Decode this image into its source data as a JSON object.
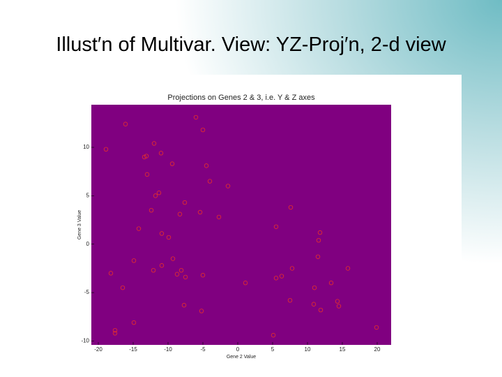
{
  "slide": {
    "title": "Illust′n of Multivar. View: YZ-Proj′n, 2-d view"
  },
  "chart_data": {
    "type": "scatter",
    "title": "Projections on Genes 2 & 3, i.e. Y & Z axes",
    "x_label": "Gene 2 Value",
    "y_label": "Gene 3 Value",
    "x": [
      -16.1,
      -6.0,
      -5.0,
      -18.9,
      -12.0,
      -13.1,
      -13.4,
      -11.0,
      -9.4,
      -4.5,
      -13.0,
      -4.0,
      -1.4,
      -11.3,
      -11.8,
      -7.6,
      -12.4,
      -8.3,
      -5.4,
      -2.7,
      7.6,
      -14.2,
      -10.9,
      -9.9,
      5.5,
      11.8,
      11.6,
      -14.9,
      -9.3,
      -10.9,
      -12.1,
      -8.1,
      -18.2,
      -8.7,
      -7.5,
      -5.0,
      7.8,
      11.5,
      15.8,
      -16.5,
      1.1,
      5.5,
      6.3,
      11.0,
      13.4,
      7.5,
      -7.7,
      -5.2,
      10.9,
      11.9,
      14.3,
      14.5,
      -14.9,
      -17.6,
      -17.6,
      5.1,
      19.9
    ],
    "values": [
      12.4,
      13.1,
      11.8,
      9.8,
      10.4,
      9.1,
      9.0,
      9.4,
      8.3,
      8.1,
      7.2,
      6.5,
      6.0,
      5.3,
      5.0,
      4.3,
      3.5,
      3.1,
      3.3,
      2.8,
      3.8,
      1.6,
      1.1,
      0.7,
      1.8,
      1.2,
      0.4,
      -1.7,
      -1.5,
      -2.2,
      -2.7,
      -2.7,
      -3.0,
      -3.1,
      -3.4,
      -3.2,
      -2.5,
      -1.3,
      -2.5,
      -4.5,
      -4.0,
      -3.5,
      -3.3,
      -4.5,
      -4.0,
      -5.8,
      -6.3,
      -6.9,
      -6.2,
      -6.8,
      -5.9,
      -6.4,
      -8.1,
      -8.9,
      -9.2,
      -9.4,
      -8.6
    ],
    "color": "#e8302a",
    "background": "#800080",
    "xlim": [
      -21,
      22
    ],
    "ylim": [
      -10.4,
      14.4
    ],
    "xticks": [
      -20,
      -15,
      -10,
      -5,
      0,
      5,
      10,
      15,
      20
    ],
    "yticks": [
      -10,
      -5,
      0,
      5,
      10
    ]
  }
}
